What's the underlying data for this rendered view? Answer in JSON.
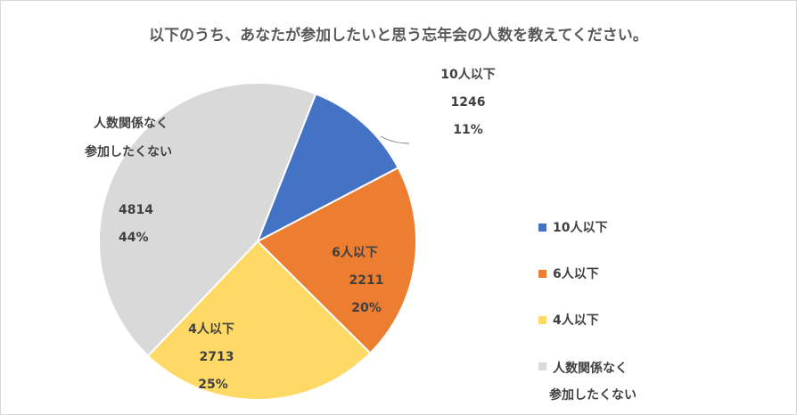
{
  "chart_data": {
    "type": "pie",
    "title": "以下のうち、あなたが参加したいと思う忘年会の人数を教えてください。",
    "slices": [
      {
        "name": "10人以下",
        "value": 1246,
        "percent": "11%",
        "color": "#4472c4"
      },
      {
        "name": "6人以下",
        "value": 2211,
        "percent": "20%",
        "color": "#ed7d31"
      },
      {
        "name": "4人以下",
        "value": 2713,
        "percent": "25%",
        "color": "#ffd966"
      },
      {
        "name_lines": [
          "人数関係なく",
          "参加したくない"
        ],
        "value": 4814,
        "percent": "44%",
        "color": "#d9d9d9"
      }
    ],
    "legend_placement": "right"
  }
}
